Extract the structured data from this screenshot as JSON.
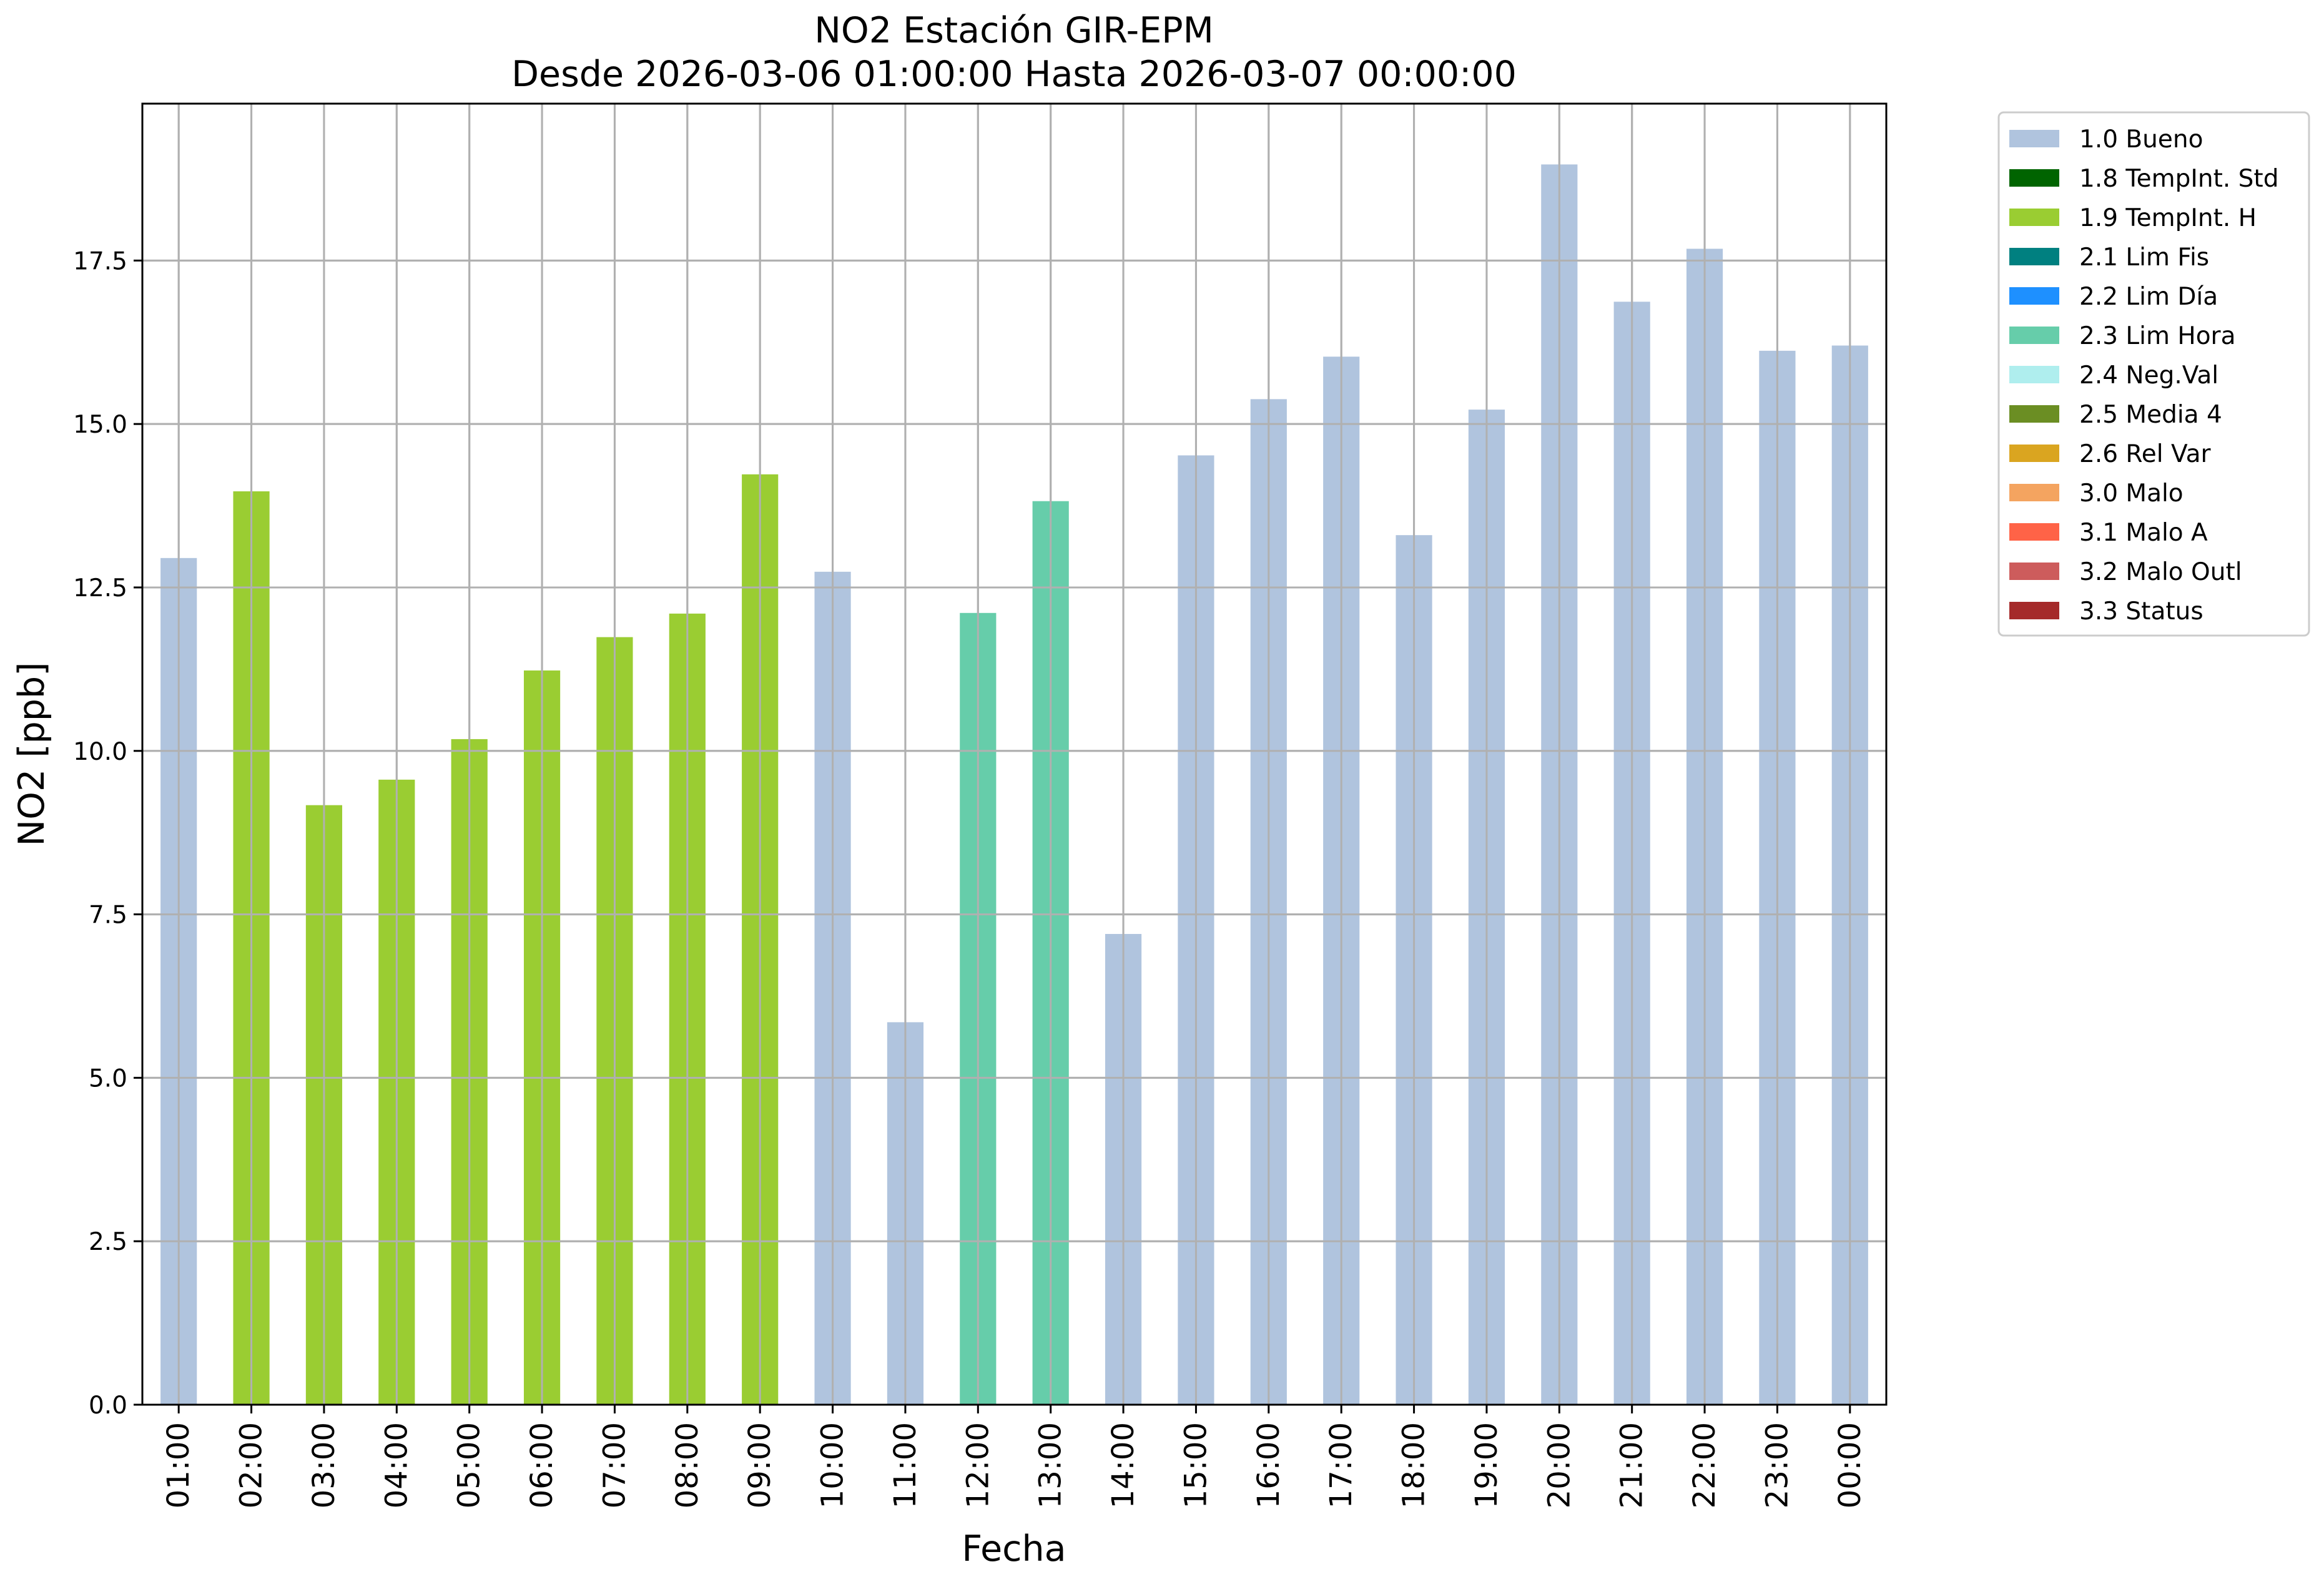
{
  "chart_data": {
    "type": "bar",
    "title": "NO2 Estación GIR-EPM",
    "subtitle": "Desde 2026-03-06 01:00:00 Hasta 2026-03-07 00:00:00",
    "xlabel": "Fecha",
    "ylabel": "NO2 [ppb]",
    "ylim": [
      0,
      19.9
    ],
    "yticks": [
      "0.0",
      "2.5",
      "5.0",
      "7.5",
      "10.0",
      "12.5",
      "15.0",
      "17.5"
    ],
    "grid": true,
    "legend_position": "outside top-right",
    "categories": [
      "01:00",
      "02:00",
      "03:00",
      "04:00",
      "05:00",
      "06:00",
      "07:00",
      "08:00",
      "09:00",
      "10:00",
      "11:00",
      "12:00",
      "13:00",
      "14:00",
      "15:00",
      "16:00",
      "17:00",
      "18:00",
      "19:00",
      "20:00",
      "21:00",
      "22:00",
      "23:00",
      "00:00"
    ],
    "values": [
      12.95,
      13.97,
      9.17,
      9.56,
      10.18,
      11.23,
      11.74,
      12.1,
      14.23,
      12.74,
      5.85,
      12.11,
      13.82,
      7.2,
      14.52,
      15.38,
      16.03,
      13.3,
      15.22,
      18.97,
      16.87,
      17.68,
      16.12,
      16.2
    ],
    "flags": [
      "1.0 Bueno",
      "1.9 TempInt. H",
      "1.9 TempInt. H",
      "1.9 TempInt. H",
      "1.9 TempInt. H",
      "1.9 TempInt. H",
      "1.9 TempInt. H",
      "1.9 TempInt. H",
      "1.9 TempInt. H",
      "1.0 Bueno",
      "1.0 Bueno",
      "2.3 Lim Hora",
      "2.3 Lim Hora",
      "1.0 Bueno",
      "1.0 Bueno",
      "1.0 Bueno",
      "1.0 Bueno",
      "1.0 Bueno",
      "1.0 Bueno",
      "1.0 Bueno",
      "1.0 Bueno",
      "1.0 Bueno",
      "1.0 Bueno",
      "1.0 Bueno"
    ],
    "legend": [
      {
        "label": "1.0 Bueno",
        "color": "#b0c4de"
      },
      {
        "label": "1.8 TempInt. Std",
        "color": "#006400"
      },
      {
        "label": "1.9 TempInt. H",
        "color": "#9acd32"
      },
      {
        "label": "2.1 Lim Fis",
        "color": "#008080"
      },
      {
        "label": "2.2 Lim Día",
        "color": "#1e90ff"
      },
      {
        "label": "2.3 Lim Hora",
        "color": "#66cdaa"
      },
      {
        "label": "2.4 Neg.Val",
        "color": "#afeeee"
      },
      {
        "label": "2.5 Media 4",
        "color": "#6b8e23"
      },
      {
        "label": "2.6 Rel Var",
        "color": "#daa520"
      },
      {
        "label": "3.0 Malo",
        "color": "#f4a460"
      },
      {
        "label": "3.1 Malo A",
        "color": "#ff6347"
      },
      {
        "label": "3.2 Malo Outl",
        "color": "#cd5c5c"
      },
      {
        "label": "3.3 Status",
        "color": "#a52a2a"
      }
    ]
  }
}
